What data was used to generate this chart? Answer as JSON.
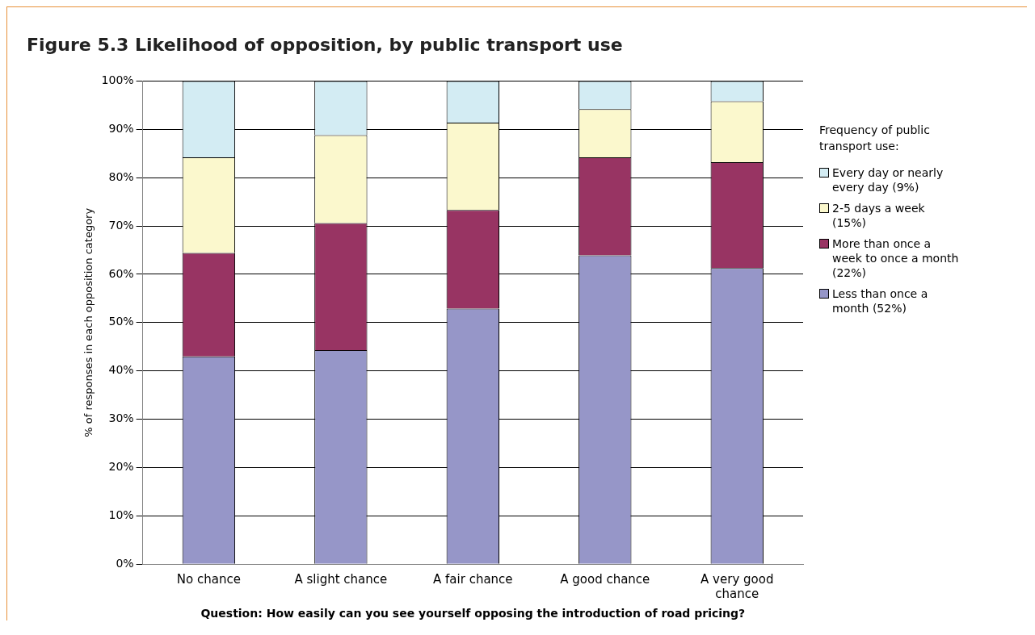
{
  "chart_data": {
    "type": "bar",
    "title": "Figure 5.3 Likelihood of opposition, by public transport use",
    "xlabel": "Question: How easily can you see yourself opposing the introduction of road pricing?",
    "ylabel": "% of responses in each opposition category",
    "legend_title": "Frequency of public transport use:",
    "categories": [
      "No chance",
      "A slight chance",
      "A fair chance",
      "A good chance",
      "A very good chance"
    ],
    "stacked": true,
    "legend": "right",
    "grid": "y",
    "ylim": [
      0,
      100
    ],
    "yticks": [
      {
        "value": 0,
        "label": "0%"
      },
      {
        "value": 10,
        "label": "10%"
      },
      {
        "value": 20,
        "label": "20%"
      },
      {
        "value": 30,
        "label": "30%"
      },
      {
        "value": 40,
        "label": "40%"
      },
      {
        "value": 50,
        "label": "50%"
      },
      {
        "value": 60,
        "label": "60%"
      },
      {
        "value": 70,
        "label": "70%"
      },
      {
        "value": 80,
        "label": "80%"
      },
      {
        "value": 90,
        "label": "90%"
      },
      {
        "value": 100,
        "label": "100%"
      }
    ],
    "series": [
      {
        "name": "Less than once a month (52%)",
        "color": "#9696c8",
        "values": [
          43,
          44.3,
          52.9,
          63.9,
          61.3
        ]
      },
      {
        "name": "More than once a week to once a month (22%)",
        "color": "#983463",
        "values": [
          21.4,
          26.3,
          20.4,
          20.3,
          21.9
        ]
      },
      {
        "name": "2-5 days a week (15%)",
        "color": "#fbf8cd",
        "values": [
          19.8,
          18.2,
          18.1,
          10,
          12.6
        ]
      },
      {
        "name": "Every day or nearly every day (9%)",
        "color": "#d3ecf3",
        "values": [
          15.8,
          11.2,
          8.6,
          5.8,
          4.2
        ]
      }
    ]
  }
}
